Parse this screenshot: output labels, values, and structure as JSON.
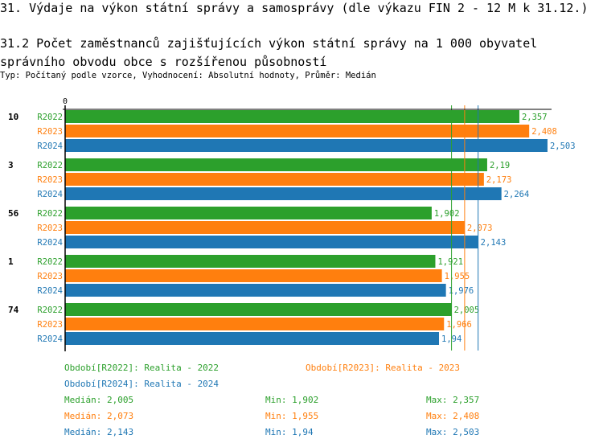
{
  "header": {
    "title": "31. Výdaje na výkon státní správy a samosprávy (dle výkazu FIN 2 - 12 M k 31.12.)",
    "subtitle_title": "31.2 Počet zaměstnanců zajišťujících výkon státní správy na 1 000 obyvatel správního obvodu obce s rozšířenou působností",
    "meta": "Typ: Počítaný podle vzorce, Vyhodnocení: Absolutní hodnoty, Průměr: Medián"
  },
  "chart_data": {
    "type": "bar",
    "orientation": "horizontal",
    "x_tick_labels": [
      "0"
    ],
    "categories": [
      "10",
      "3",
      "56",
      "1",
      "74"
    ],
    "series": [
      {
        "name": "R2022",
        "color": "#2ca02c",
        "values": [
          2.357,
          2.19,
          1.902,
          1.921,
          2.005
        ],
        "labels": [
          "2,357",
          "2,19",
          "1,902",
          "1,921",
          "2,005"
        ]
      },
      {
        "name": "R2023",
        "color": "#ff7f0e",
        "values": [
          2.408,
          2.173,
          2.073,
          1.955,
          1.966
        ],
        "labels": [
          "2,408",
          "2,173",
          "2,073",
          "1,955",
          "1,966"
        ]
      },
      {
        "name": "R2024",
        "color": "#1f77b4",
        "values": [
          2.503,
          2.264,
          2.143,
          1.976,
          1.94
        ],
        "labels": [
          "2,503",
          "2,264",
          "2,143",
          "1,976",
          "1,94"
        ]
      }
    ],
    "median_lines": [
      2.005,
      2.073,
      2.143
    ],
    "legend": [
      "Období[R2022]: Realita - 2022",
      "Období[R2023]: Realita - 2023",
      "Období[R2024]: Realita - 2024"
    ],
    "stats": [
      {
        "median": "Medián: 2,005",
        "min": "Min: 1,902",
        "max": "Max: 2,357"
      },
      {
        "median": "Medián: 2,073",
        "min": "Min: 1,955",
        "max": "Max: 2,408"
      },
      {
        "median": "Medián: 2,143",
        "min": "Min: 1,94",
        "max": "Max: 2,503"
      }
    ]
  }
}
